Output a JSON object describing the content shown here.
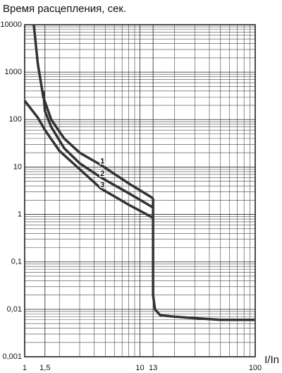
{
  "chart_data": {
    "type": "line",
    "title": "Время расцепления, сек.",
    "x_label": "I/In",
    "xscale": "log",
    "yscale": "log",
    "grid": true,
    "xlim": [
      1,
      100
    ],
    "ylim": [
      0.001,
      10000
    ],
    "xticks": [
      1,
      {
        "value": 1.5,
        "label": "1,5"
      },
      10,
      13,
      100
    ],
    "yticks": [
      {
        "value": 0.001,
        "label": "0,001"
      },
      {
        "value": 0.01,
        "label": "0,01"
      },
      {
        "value": 0.1,
        "label": "0,1"
      },
      1,
      10,
      100,
      1000,
      10000
    ],
    "series": [
      {
        "name": "1",
        "color": "#333333",
        "x": [
          1.2,
          1.3,
          1.45,
          1.7,
          2.2,
          3,
          4.6,
          8,
          13
        ],
        "values": [
          10000,
          1500,
          300,
          100,
          40,
          20,
          11,
          4.5,
          2.2
        ]
      },
      {
        "name": "2",
        "color": "#333333",
        "x": [
          1.45,
          1.5,
          1.7,
          2.2,
          3,
          4.6,
          8,
          13
        ],
        "values": [
          400,
          150,
          70,
          25,
          12,
          6,
          2.8,
          1.4
        ]
      },
      {
        "name": "3",
        "color": "#333333",
        "x": [
          1,
          1.3,
          1.5,
          2,
          3,
          4.6,
          8,
          13
        ],
        "values": [
          250,
          110,
          60,
          22,
          9,
          3.5,
          1.6,
          0.85
        ]
      },
      {
        "color": "#333333",
        "x": [
          13,
          13,
          13.5,
          15,
          20,
          30,
          50,
          100
        ],
        "values": [
          2.2,
          0.02,
          0.01,
          0.0075,
          0.007,
          0.0065,
          0.006,
          0.006
        ]
      }
    ]
  }
}
